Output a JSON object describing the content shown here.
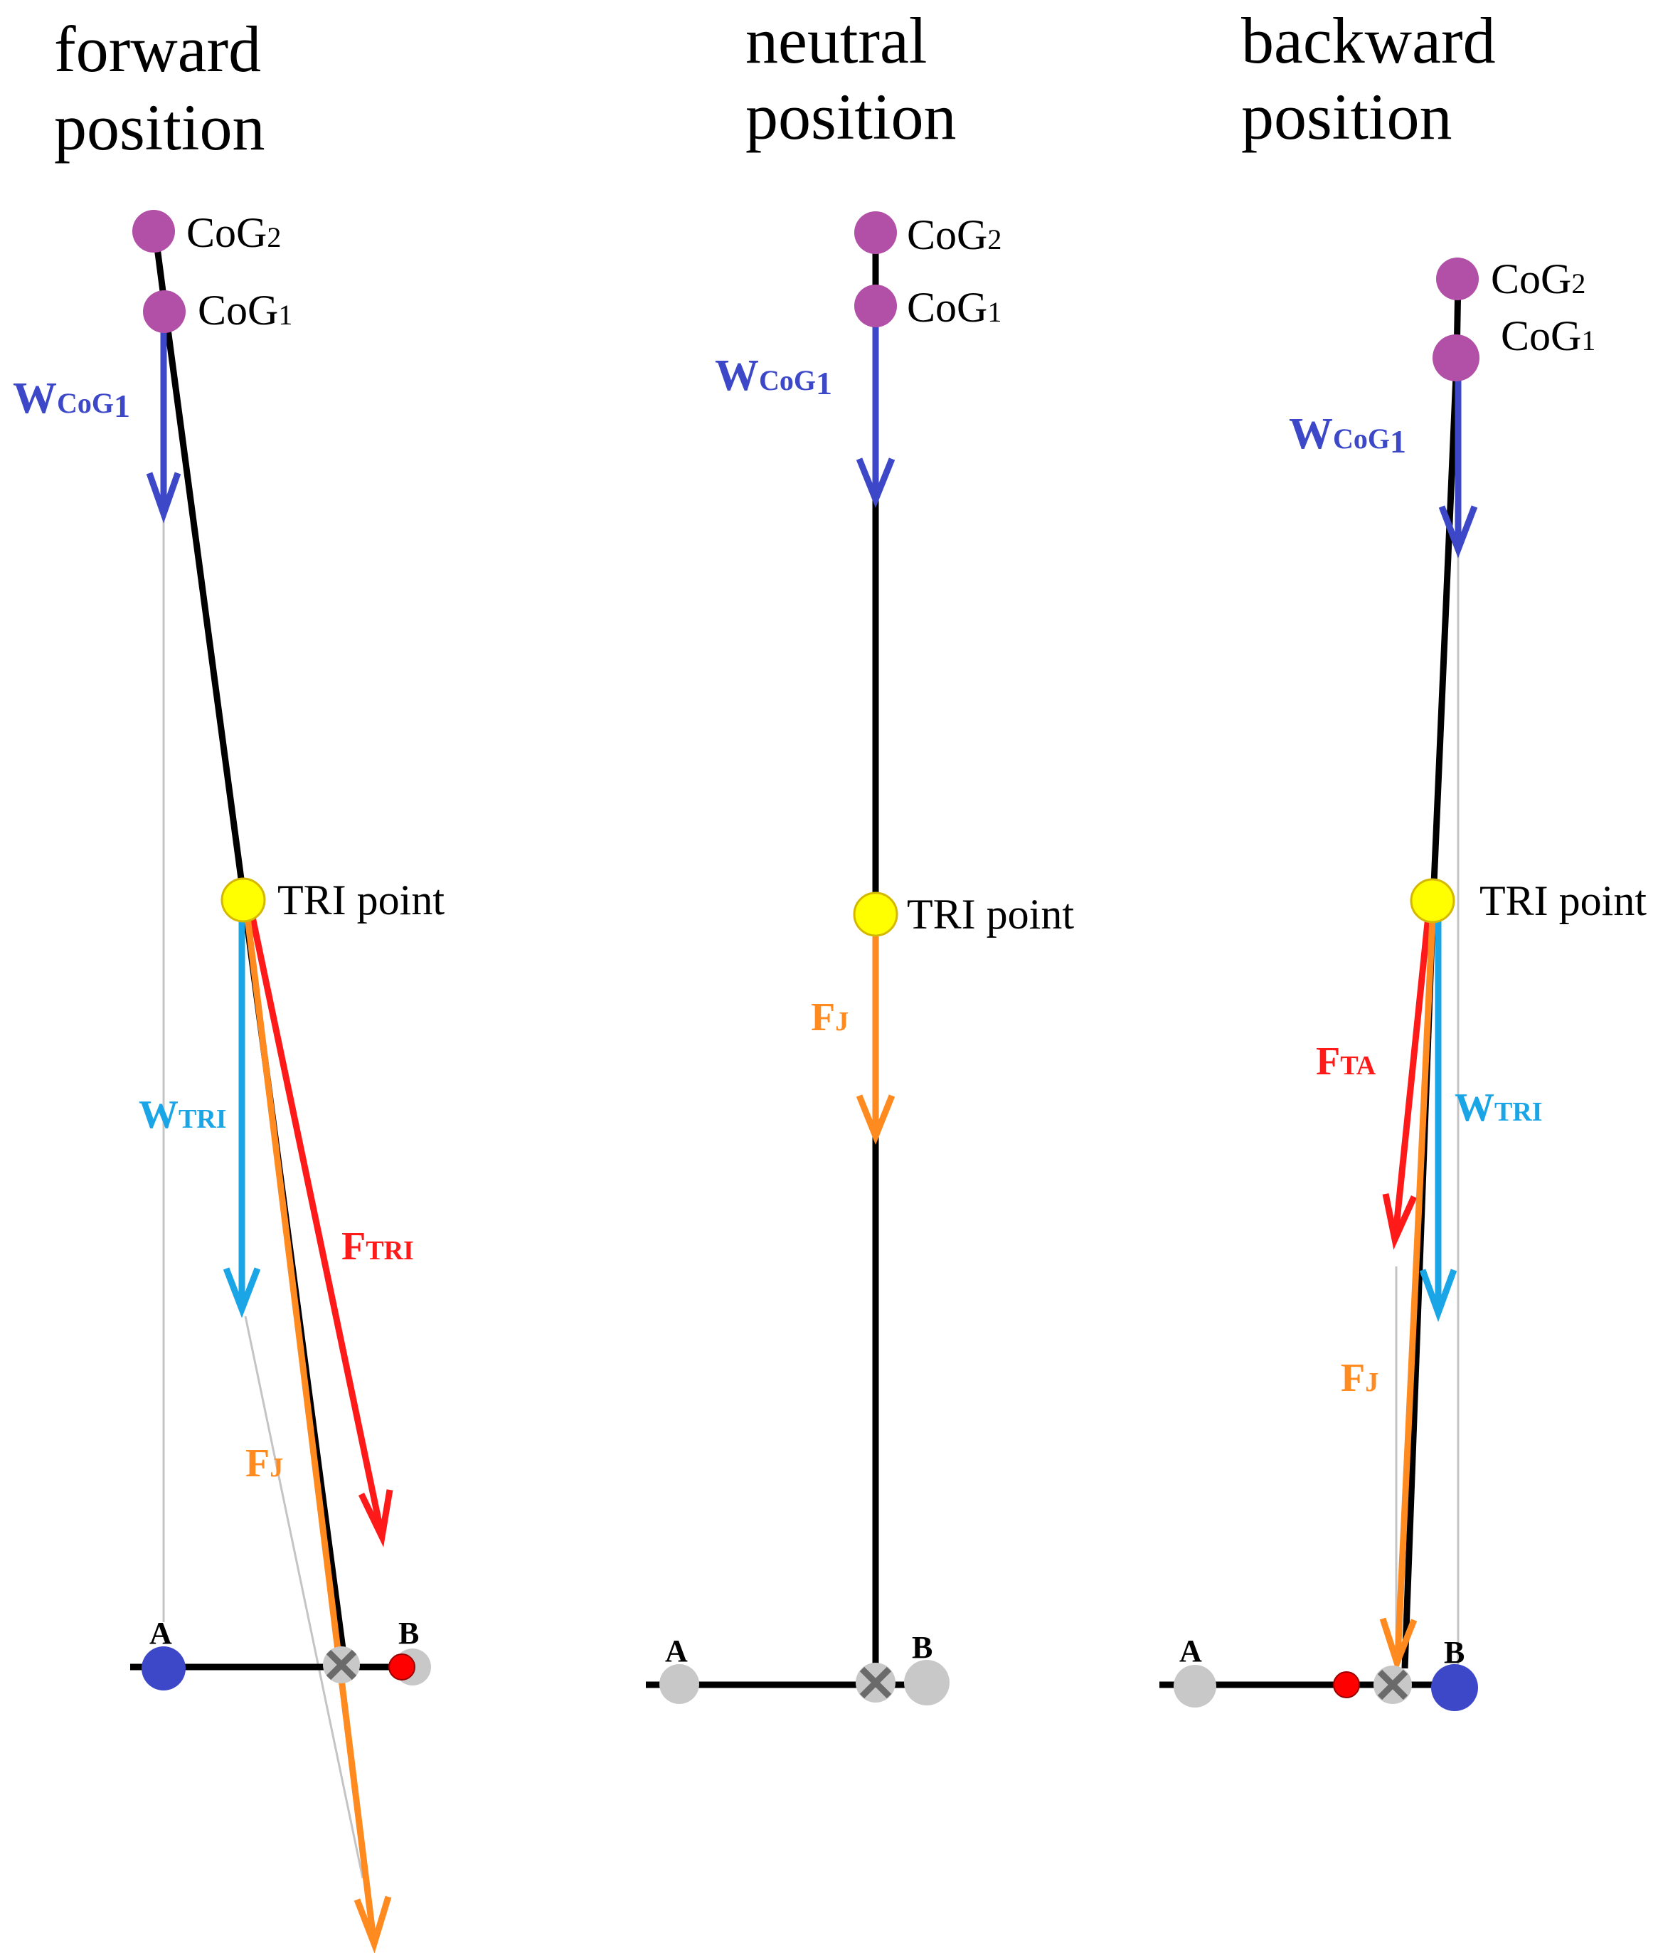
{
  "panels": {
    "forward": {
      "title": [
        "forward",
        "position"
      ],
      "cog2_main": "CoG",
      "cog2_sub": "2",
      "cog1_main": "CoG",
      "cog1_sub": "1",
      "tri_label": "TRI point",
      "w_cog_main": "W",
      "w_cog_sub": "CoG",
      "w_cog_sub2": "1",
      "w_tri_main": "W",
      "w_tri_sub": "TRI",
      "f_tri_main": "F",
      "f_tri_sub": "TRI",
      "f_j_main": "F",
      "f_j_sub": "J",
      "point_a": "A",
      "point_b": "B"
    },
    "neutral": {
      "title": [
        "neutral",
        "position"
      ],
      "cog2_main": "CoG",
      "cog2_sub": "2",
      "cog1_main": "CoG",
      "cog1_sub": "1",
      "tri_label": "TRI point",
      "w_cog_main": "W",
      "w_cog_sub": "CoG",
      "w_cog_sub2": "1",
      "f_j_main": "F",
      "f_j_sub": "J",
      "point_a": "A",
      "point_b": "B"
    },
    "backward": {
      "title": [
        "backward",
        "position"
      ],
      "cog2_main": "CoG",
      "cog2_sub": "2",
      "cog1_main": "CoG",
      "cog1_sub": "1",
      "tri_label": "TRI point",
      "w_cog_main": "W",
      "w_cog_sub": "CoG",
      "w_cog_sub2": "1",
      "w_tri_main": "W",
      "w_tri_sub": "TRI",
      "f_ta_main": "F",
      "f_ta_sub": "TA",
      "f_j_main": "F",
      "f_j_sub": "J",
      "point_a": "A",
      "point_b": "B"
    }
  },
  "colors": {
    "body_line": "#000000",
    "cog": "#b24fa7",
    "tri": "#ffff00",
    "w_cog": "#3c48c8",
    "w_tri": "#1aa5e6",
    "f_tri": "#ff1a1a",
    "f_j": "#ff8a1f",
    "gray_dot": "#c8c8c8",
    "pivot": "#7a7a7a",
    "blue_dot": "#3c48c8",
    "red_dot": "#ff0000",
    "guide": "#b4b4b4"
  }
}
